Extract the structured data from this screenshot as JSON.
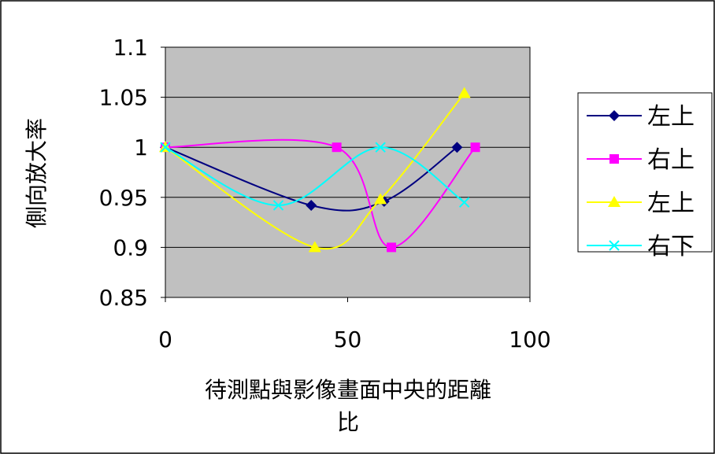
{
  "chart_data": {
    "type": "line",
    "title": "",
    "xlabel_line1": "待測點與影像畫面中央的距離",
    "xlabel_line2": "比",
    "ylabel": "側向放大率",
    "xlim": [
      0,
      100
    ],
    "ylim": [
      0.85,
      1.1
    ],
    "x_ticks": [
      "0",
      "50",
      "100"
    ],
    "y_ticks": [
      "0.85",
      "0.9",
      "0.95",
      "1",
      "1.05",
      "1.1"
    ],
    "grid": "horizontal",
    "legend_position": "right",
    "plot_background": "#c0c0c0",
    "series": [
      {
        "name": "左上",
        "color": "#000080",
        "marker": "diamond",
        "x": [
          0,
          40,
          60,
          80
        ],
        "y": [
          1.0,
          0.942,
          0.946,
          1.0
        ]
      },
      {
        "name": "右上",
        "color": "#ff00ff",
        "marker": "square",
        "x": [
          0,
          47,
          62,
          85
        ],
        "y": [
          1.0,
          1.0,
          0.9,
          1.0
        ]
      },
      {
        "name": "左上",
        "color": "#ffff00",
        "marker": "triangle",
        "x": [
          0,
          41,
          59,
          82
        ],
        "y": [
          1.0,
          0.9,
          0.948,
          1.054
        ]
      },
      {
        "name": "右下",
        "color": "#00ffff",
        "marker": "x",
        "x": [
          0,
          31,
          59,
          82
        ],
        "y": [
          1.0,
          0.942,
          1.0,
          0.945
        ]
      }
    ]
  }
}
